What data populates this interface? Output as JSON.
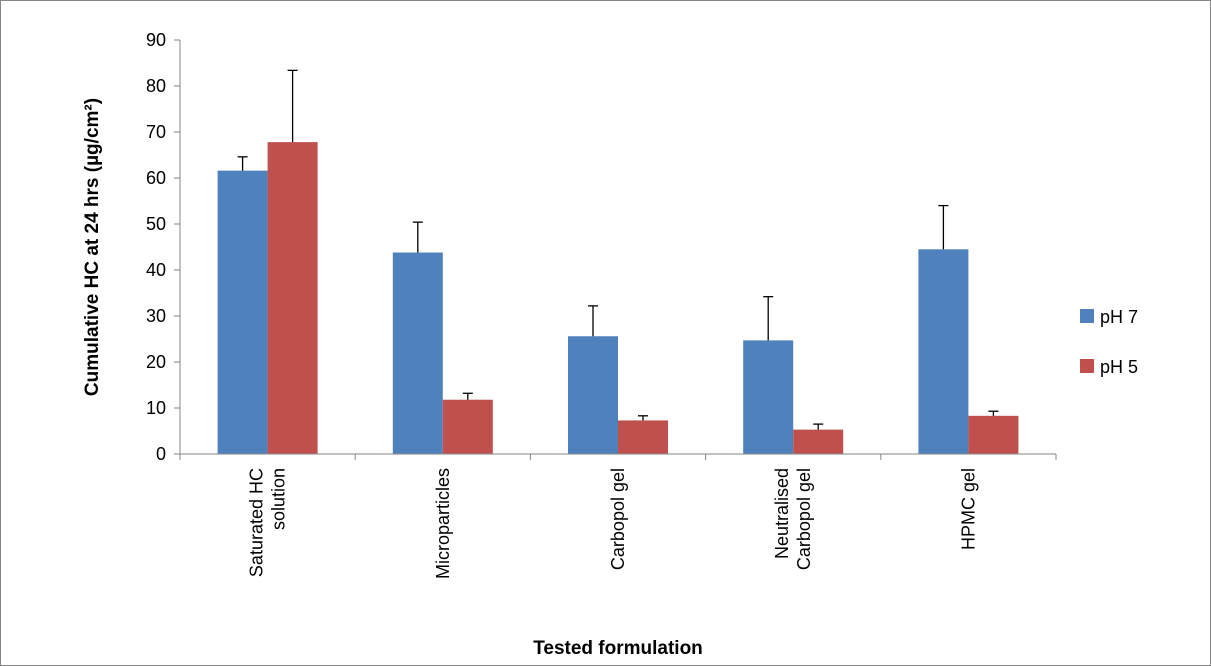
{
  "chart_data": {
    "type": "bar",
    "title": "",
    "xlabel": "Tested formulation",
    "ylabel": "Cumulative HC at 24 hrs (µg/cm²)",
    "ylim": [
      0,
      90
    ],
    "yticks": [
      0,
      10,
      20,
      30,
      40,
      50,
      60,
      70,
      80,
      90
    ],
    "grid": false,
    "legend_position": "right",
    "categories": [
      [
        "Saturated HC",
        "solution"
      ],
      [
        "Microparticles"
      ],
      [
        "Carbopol gel"
      ],
      [
        "Neutralised",
        "Carbopol gel"
      ],
      [
        "HPMC gel"
      ]
    ],
    "series": [
      {
        "name": "pH 7",
        "color": "#4f81bd",
        "values": [
          61.6,
          43.8,
          25.6,
          24.7,
          44.5
        ],
        "errors": [
          3.0,
          6.6,
          6.6,
          9.5,
          9.5
        ]
      },
      {
        "name": "pH 5",
        "color": "#c0504d",
        "values": [
          67.8,
          11.8,
          7.3,
          5.3,
          8.3
        ],
        "errors": [
          15.6,
          1.4,
          1.0,
          1.2,
          1.0
        ]
      }
    ]
  }
}
